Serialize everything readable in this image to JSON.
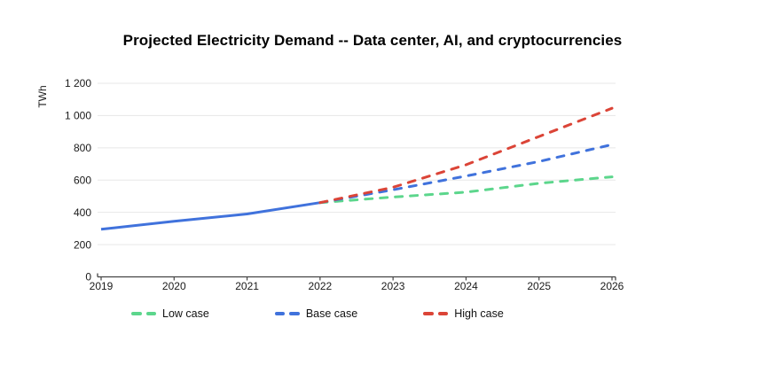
{
  "title": "Projected Electricity Demand -- Data center, AI, and cryptocurrencies",
  "chart_data": {
    "type": "line",
    "title": "Projected Electricity Demand -- Data center, AI, and cryptocurrencies",
    "xlabel": "",
    "ylabel": "TWh",
    "ylim": [
      0,
      1200
    ],
    "xlim": [
      2019,
      2026
    ],
    "grid": true,
    "legend_position": "bottom",
    "y_ticks": [
      {
        "value": 0,
        "label": "0"
      },
      {
        "value": 200,
        "label": "200"
      },
      {
        "value": 400,
        "label": "400"
      },
      {
        "value": 600,
        "label": "600"
      },
      {
        "value": 800,
        "label": "800"
      },
      {
        "value": 1000,
        "label": "1 000"
      },
      {
        "value": 1200,
        "label": "1 200"
      }
    ],
    "x_ticks": [
      {
        "value": 2019,
        "label": "2019"
      },
      {
        "value": 2020,
        "label": "2020"
      },
      {
        "value": 2021,
        "label": "2021"
      },
      {
        "value": 2022,
        "label": "2022"
      },
      {
        "value": 2023,
        "label": "2023"
      },
      {
        "value": 2024,
        "label": "2024"
      },
      {
        "value": 2025,
        "label": "2025"
      },
      {
        "value": 2026,
        "label": "2026"
      }
    ],
    "series": [
      {
        "name": "",
        "role": "historical-solid-line",
        "color": "#4072DC",
        "style": "solid",
        "points": [
          [
            2019,
            295
          ],
          [
            2020,
            345
          ],
          [
            2021,
            390
          ],
          [
            2022,
            460
          ]
        ]
      },
      {
        "name": "Low case",
        "role": "projection",
        "color": "#5CD68C",
        "style": "dashed",
        "points": [
          [
            2022,
            460
          ],
          [
            2023,
            495
          ],
          [
            2024,
            525
          ],
          [
            2025,
            580
          ],
          [
            2026,
            620
          ]
        ]
      },
      {
        "name": "Base case",
        "role": "projection",
        "color": "#4072DC",
        "style": "dashed",
        "points": [
          [
            2022,
            460
          ],
          [
            2023,
            540
          ],
          [
            2024,
            625
          ],
          [
            2025,
            715
          ],
          [
            2026,
            820
          ]
        ]
      },
      {
        "name": "High case",
        "role": "projection",
        "color": "#DB4437",
        "style": "dashed",
        "points": [
          [
            2022,
            460
          ],
          [
            2023,
            555
          ],
          [
            2024,
            695
          ],
          [
            2025,
            870
          ],
          [
            2026,
            1045
          ]
        ]
      }
    ],
    "colors": {
      "grid": "#e7e7e7",
      "axis": "#444444",
      "tick_text": "#1a1a1a"
    }
  }
}
